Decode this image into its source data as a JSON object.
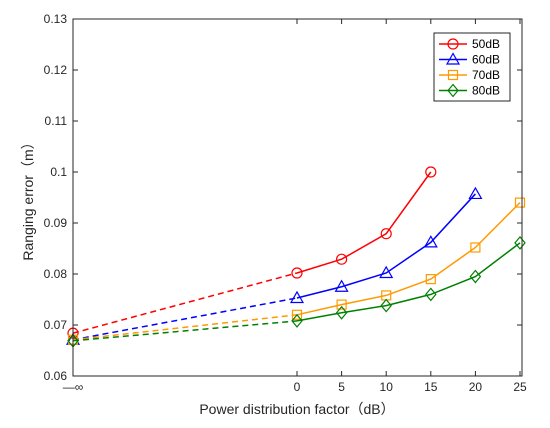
{
  "chart_data": {
    "type": "line",
    "xlabel": "Power distribution factor（dB）",
    "ylabel": "Ranging error（m）",
    "x_ticks": [
      "—∞",
      "0",
      "5",
      "10",
      "15",
      "20",
      "25"
    ],
    "y_ticks": [
      "0.06",
      "0.07",
      "0.08",
      "0.09",
      "0.1",
      "0.11",
      "0.12",
      "0.13"
    ],
    "ylim": [
      0.06,
      0.13
    ],
    "grid": false,
    "legend_position": "top-right",
    "dashed_segment": "from −∞ to 0",
    "series": [
      {
        "name": "50dB",
        "color": "#ff0000",
        "marker": "circle",
        "limit_value": 0.0684,
        "x": [
          0,
          5,
          10,
          15
        ],
        "y": [
          0.0802,
          0.0829,
          0.0879,
          0.1
        ]
      },
      {
        "name": "60dB",
        "color": "#0000ff",
        "marker": "triangle",
        "limit_value": 0.0671,
        "x": [
          0,
          5,
          10,
          15,
          20
        ],
        "y": [
          0.0753,
          0.0775,
          0.0802,
          0.0862,
          0.0957
        ]
      },
      {
        "name": "70dB",
        "color": "#ff9900",
        "marker": "square",
        "limit_value": 0.0671,
        "x": [
          0,
          5,
          10,
          15,
          20,
          25
        ],
        "y": [
          0.072,
          0.074,
          0.0758,
          0.079,
          0.0852,
          0.094
        ]
      },
      {
        "name": "80dB",
        "color": "#008000",
        "marker": "diamond",
        "limit_value": 0.0669,
        "x": [
          0,
          5,
          10,
          15,
          20,
          25
        ],
        "y": [
          0.0708,
          0.0724,
          0.0738,
          0.076,
          0.0795,
          0.0861
        ]
      }
    ]
  }
}
